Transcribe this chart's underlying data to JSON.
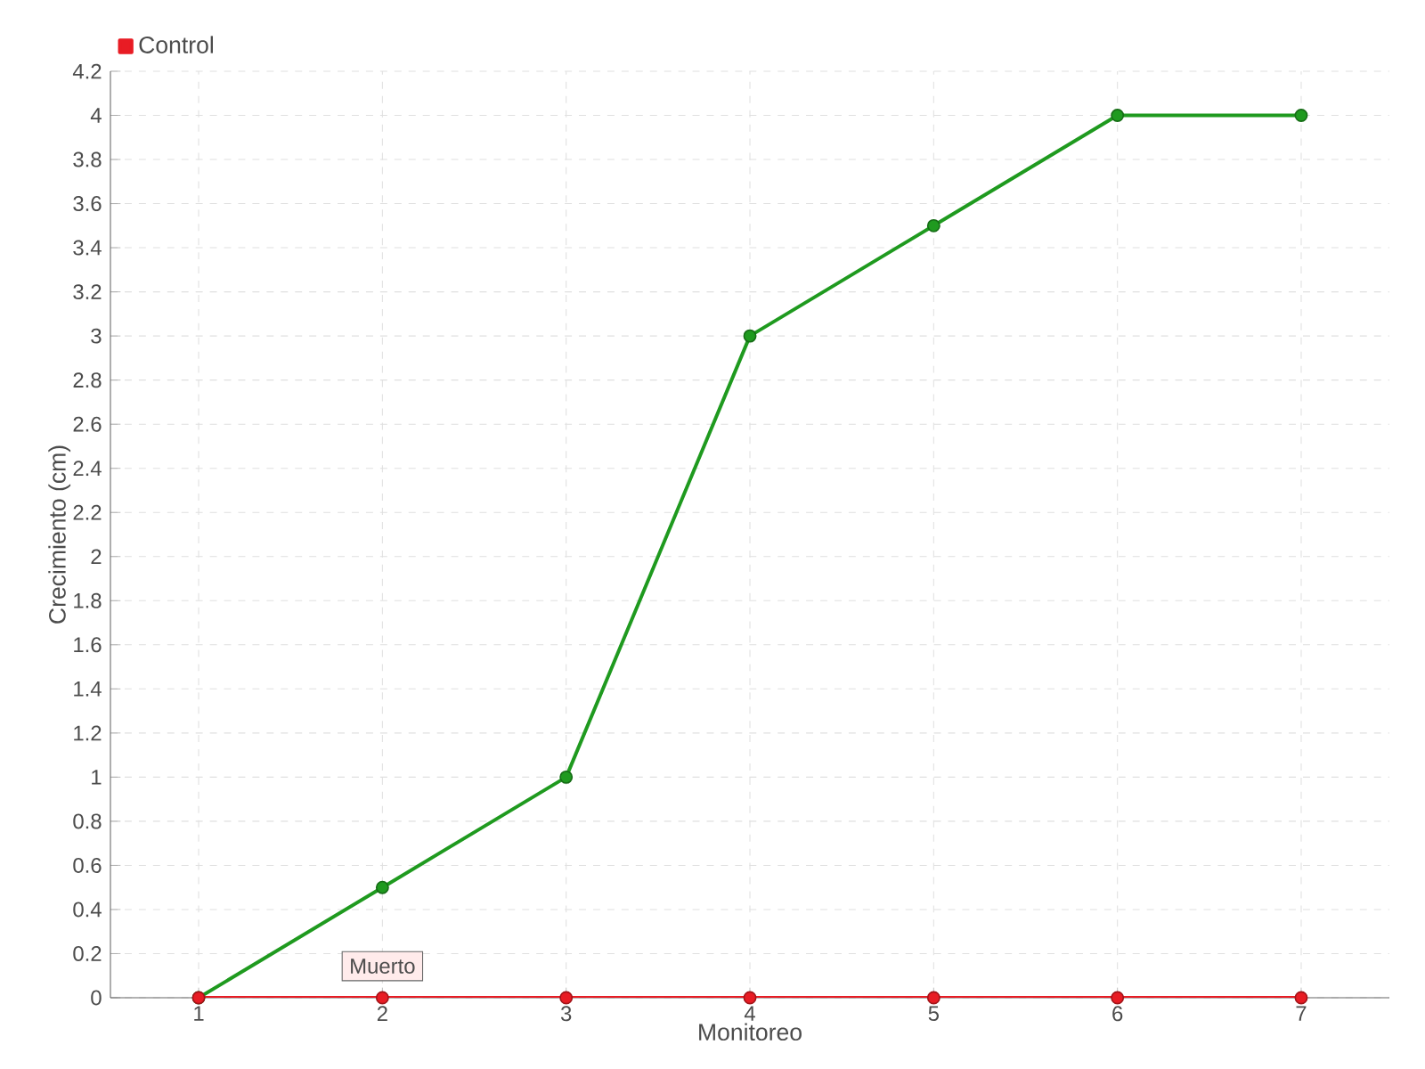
{
  "chart_data": {
    "type": "line",
    "xlabel": "Monitoreo",
    "ylabel": "Crecimiento (cm)",
    "categories": [
      "1",
      "2",
      "3",
      "4",
      "5",
      "6",
      "7"
    ],
    "series": [
      {
        "color": "#1f9a1f",
        "values": [
          0,
          0.5,
          1,
          3,
          3.5,
          4,
          4
        ]
      },
      {
        "name": "Control",
        "color": "#e81c24",
        "values": [
          0,
          0,
          0,
          0,
          0,
          0,
          0
        ]
      }
    ],
    "ylim": [
      0,
      4.2
    ],
    "yticks": [
      0,
      0.2,
      0.4,
      0.6,
      0.8,
      1,
      1.2,
      1.4,
      1.6,
      1.8,
      2,
      2.2,
      2.4,
      2.6,
      2.8,
      3,
      3.2,
      3.4,
      3.6,
      3.8,
      4,
      4.2
    ],
    "annotations": [
      {
        "text": "Muerto",
        "x": "2",
        "y": 0
      }
    ],
    "grid": true,
    "legend": "top left",
    "marker": "circle",
    "line_style": "solid"
  }
}
